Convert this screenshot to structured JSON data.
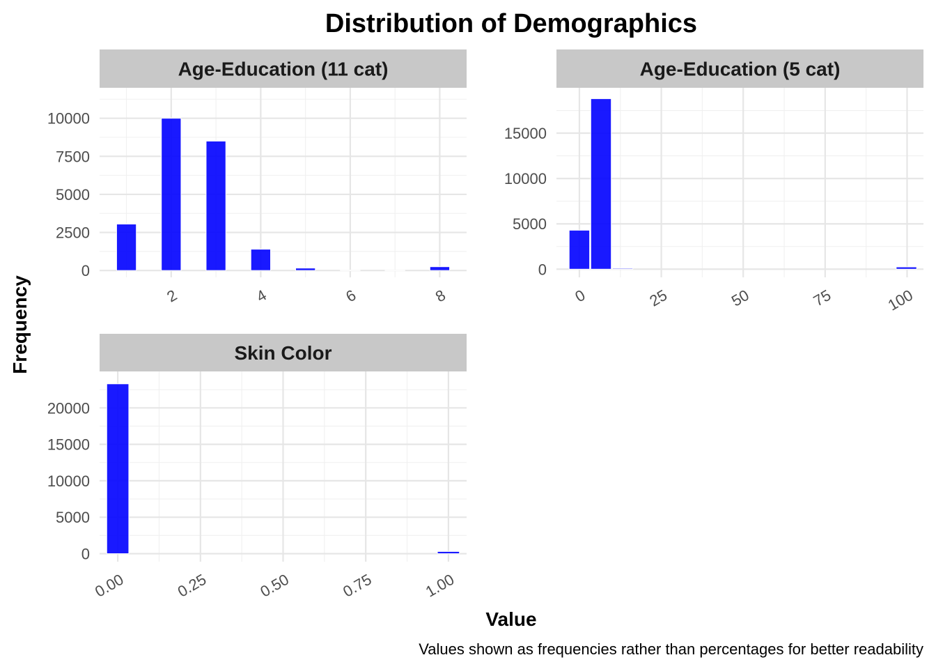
{
  "title": "Distribution of Demographics",
  "xlabel": "Value",
  "ylabel": "Frequency",
  "caption": "Values shown as frequencies rather than percentages for better readability",
  "colors": {
    "bar": "#0000ff",
    "strip": "#c8c8c8",
    "grid": "#e6e6e6"
  },
  "chart_data": [
    {
      "type": "bar",
      "title": "Age-Education (11 cat)",
      "xlim": [
        0.4,
        8.6
      ],
      "ylim": [
        -450,
        12000
      ],
      "x_ticks": [
        "2",
        "4",
        "6",
        "8"
      ],
      "x_tick_values": [
        2,
        4,
        6,
        8
      ],
      "y_ticks": [
        "0",
        "2500",
        "5000",
        "7500",
        "10000"
      ],
      "y_tick_values": [
        0,
        2500,
        5000,
        7500,
        10000
      ],
      "bin_width": 0.44,
      "bars": [
        {
          "x": 1,
          "value": 3050
        },
        {
          "x": 2,
          "value": 10000
        },
        {
          "x": 3,
          "value": 8500
        },
        {
          "x": 4,
          "value": 1400
        },
        {
          "x": 5,
          "value": 160
        },
        {
          "x": 6,
          "value": 20
        },
        {
          "x": 7,
          "value": 10
        },
        {
          "x": 8,
          "value": 250
        }
      ]
    },
    {
      "type": "bar",
      "title": "Age-Education (5 cat)",
      "xlim": [
        -7,
        105
      ],
      "ylim": [
        -900,
        20000
      ],
      "x_ticks": [
        "0",
        "25",
        "50",
        "75",
        "100"
      ],
      "x_tick_values": [
        0,
        25,
        50,
        75,
        100
      ],
      "y_ticks": [
        "0",
        "5000",
        "10000",
        "15000"
      ],
      "y_tick_values": [
        0,
        5000,
        10000,
        15000
      ],
      "bin_width": 6.25,
      "bars": [
        {
          "x": 0,
          "value": 4300
        },
        {
          "x": 6.6,
          "value": 18800
        },
        {
          "x": 13.2,
          "value": 100
        },
        {
          "x": 99.8,
          "value": 250
        }
      ]
    },
    {
      "type": "bar",
      "title": "Skin Color",
      "xlim": [
        -0.055,
        1.055
      ],
      "ylim": [
        -1100,
        25000
      ],
      "x_ticks": [
        "0.00",
        "0.25",
        "0.50",
        "0.75",
        "1.00"
      ],
      "x_tick_values": [
        0,
        0.25,
        0.5,
        0.75,
        1.0
      ],
      "y_ticks": [
        "0",
        "5000",
        "10000",
        "15000",
        "20000"
      ],
      "y_tick_values": [
        0,
        5000,
        10000,
        15000,
        20000
      ],
      "bin_width": 0.0667,
      "bars": [
        {
          "x": 0,
          "value": 23300
        },
        {
          "x": 1,
          "value": 300
        }
      ]
    }
  ]
}
